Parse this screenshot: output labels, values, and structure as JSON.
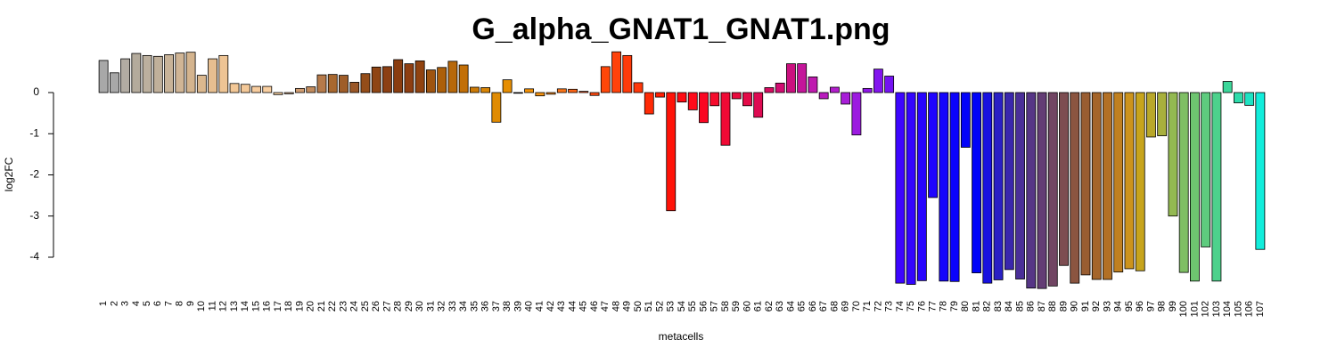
{
  "chart_data": {
    "type": "bar",
    "title": "G_alpha_GNAT1_GNAT1.png",
    "xlabel": "metacells",
    "ylabel": "log2FC",
    "yticks": [
      0,
      -1,
      -2,
      -3,
      -4
    ],
    "ylim": [
      -4.9,
      1.05
    ],
    "grid": false,
    "legend": "none",
    "categories": [
      "1",
      "2",
      "3",
      "4",
      "5",
      "6",
      "7",
      "8",
      "9",
      "10",
      "11",
      "12",
      "13",
      "14",
      "15",
      "16",
      "17",
      "18",
      "19",
      "20",
      "21",
      "22",
      "23",
      "24",
      "25",
      "26",
      "27",
      "28",
      "29",
      "30",
      "31",
      "32",
      "33",
      "34",
      "35",
      "36",
      "37",
      "38",
      "39",
      "40",
      "41",
      "42",
      "43",
      "44",
      "45",
      "46",
      "47",
      "48",
      "49",
      "50",
      "51",
      "52",
      "53",
      "54",
      "55",
      "56",
      "57",
      "58",
      "59",
      "60",
      "61",
      "62",
      "63",
      "64",
      "65",
      "66",
      "67",
      "68",
      "69",
      "70",
      "71",
      "72",
      "73",
      "74",
      "75",
      "76",
      "77",
      "78",
      "79",
      "80",
      "81",
      "82",
      "83",
      "84",
      "85",
      "86",
      "87",
      "88",
      "89",
      "90",
      "91",
      "92",
      "93",
      "94",
      "95",
      "96",
      "97",
      "98",
      "99",
      "100",
      "101",
      "102",
      "103",
      "104",
      "105",
      "106",
      "107"
    ],
    "values": [
      0.78,
      0.48,
      0.82,
      0.95,
      0.9,
      0.88,
      0.92,
      0.96,
      0.98,
      0.42,
      0.82,
      0.9,
      0.22,
      0.2,
      0.15,
      0.15,
      -0.05,
      -0.03,
      0.1,
      0.14,
      0.43,
      0.44,
      0.42,
      0.25,
      0.46,
      0.62,
      0.63,
      0.8,
      0.7,
      0.77,
      0.55,
      0.61,
      0.76,
      0.67,
      0.13,
      0.12,
      -0.72,
      0.31,
      0.0,
      0.09,
      -0.08,
      -0.04,
      0.09,
      0.08,
      0.03,
      -0.07,
      0.63,
      0.99,
      0.9,
      0.24,
      -0.52,
      -0.11,
      -2.87,
      -0.23,
      -0.42,
      -0.73,
      -0.32,
      -1.28,
      -0.15,
      -0.32,
      -0.6,
      0.12,
      0.23,
      0.7,
      0.7,
      0.38,
      -0.15,
      0.13,
      -0.28,
      -1.03,
      0.1,
      0.57,
      0.4,
      -4.63,
      -4.66,
      -4.57,
      -2.55,
      -4.58,
      -4.59,
      -1.33,
      -4.38,
      -4.63,
      -4.55,
      -4.3,
      -4.53,
      -4.75,
      -4.76,
      -4.7,
      -4.2,
      -4.63,
      -4.43,
      -4.54,
      -4.54,
      -4.36,
      -4.28,
      -4.33,
      -1.08,
      -1.05,
      -3.0,
      -4.37,
      -4.58,
      -3.75,
      -4.58,
      0.27,
      -0.25,
      -0.31,
      -3.81
    ],
    "colors": [
      "#a8a8a8",
      "#a8a8a8",
      "#b2aca3",
      "#b4ab9c",
      "#bcb09e",
      "#c0b09a",
      "#c8b398",
      "#d0b595",
      "#d4b48e",
      "#dbb88e",
      "#e6be90",
      "#eec494",
      "#f2c796",
      "#f3c898",
      "#f7cc9e",
      "#f9cfa1",
      "#f7cf9f",
      "#e4b48a",
      "#d09d72",
      "#c18b5d",
      "#b67a4a",
      "#a8682f",
      "#9f5d29",
      "#9a5727",
      "#944d19",
      "#8f4514",
      "#8c3f13",
      "#8a3d10",
      "#8e3e11",
      "#914310",
      "#9e5410",
      "#ac5f0a",
      "#b7680a",
      "#c26f07",
      "#cc7a06",
      "#d98506",
      "#e08b03",
      "#e68e02",
      "#f09004",
      "#f49206",
      "#f39212",
      "#f9891a",
      "#fa7519",
      "#fa6316",
      "#f9521c",
      "#ff4a10",
      "#ff4709",
      "#ff420b",
      "#ff3a09",
      "#ff3709",
      "#ff2a06",
      "#ff1f04",
      "#ff1308",
      "#ff0a12",
      "#ff0a1a",
      "#fa0722",
      "#f50b2c",
      "#f00a35",
      "#ea0a3e",
      "#e40b48",
      "#de0b52",
      "#d70c61",
      "#d20d72",
      "#ca117f",
      "#c4169a",
      "#bf1aaf",
      "#b91bbd",
      "#b21ecc",
      "#a81ed8",
      "#9c1be0",
      "#8f16e8",
      "#8214ee",
      "#7413f2",
      "#3d06ff",
      "#3306fe",
      "#2805fe",
      "#1f05fe",
      "#1504fc",
      "#0b03fa",
      "#0202f9",
      "#0003f8",
      "#1811e0",
      "#2a20c5",
      "#3a27ad",
      "#4a2f98",
      "#563686",
      "#633d75",
      "#714563",
      "#7d4d51",
      "#8b5540",
      "#995d31",
      "#a5652a",
      "#b27025",
      "#c08020",
      "#cc931c",
      "#c7a41c",
      "#b9a82a",
      "#a8b03d",
      "#93b951",
      "#7fbf64",
      "#6ec570",
      "#5ecb7e",
      "#4dd18c",
      "#3cd79a",
      "#2ddcab",
      "#1fe3c3",
      "#12eddb"
    ]
  }
}
